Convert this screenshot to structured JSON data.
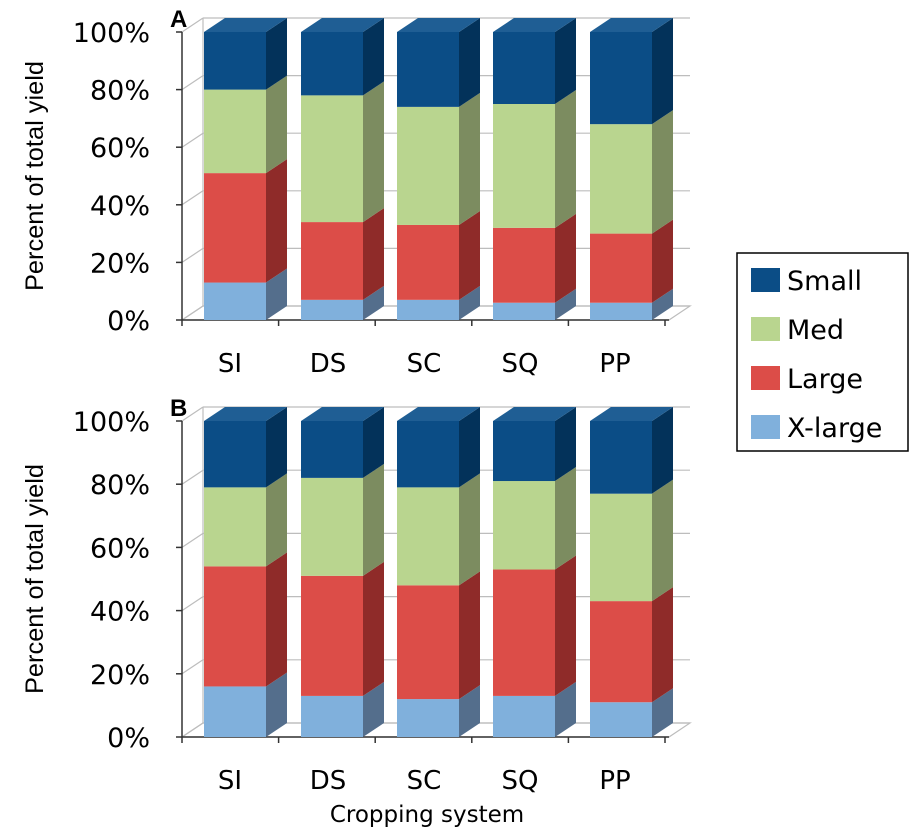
{
  "chart_data": [
    {
      "type": "bar",
      "stacked": true,
      "panel_label": "A",
      "ylabel": "Percent of total yield",
      "xlabel": "",
      "ylim": [
        0,
        100
      ],
      "y_ticks": [
        "0%",
        "20%",
        "40%",
        "60%",
        "80%",
        "100%"
      ],
      "categories": [
        "SI",
        "DS",
        "SC",
        "SQ",
        "PP"
      ],
      "series": [
        {
          "name": "X-large",
          "values": [
            13,
            7,
            7,
            6,
            6
          ]
        },
        {
          "name": "Large",
          "values": [
            38,
            27,
            26,
            26,
            24
          ]
        },
        {
          "name": "Med",
          "values": [
            29,
            44,
            41,
            43,
            38
          ]
        },
        {
          "name": "Small",
          "values": [
            20,
            22,
            26,
            25,
            32
          ]
        }
      ]
    },
    {
      "type": "bar",
      "stacked": true,
      "panel_label": "B",
      "ylabel": "Percent of total yield",
      "xlabel": "Cropping system",
      "ylim": [
        0,
        100
      ],
      "y_ticks": [
        "0%",
        "20%",
        "40%",
        "60%",
        "80%",
        "100%"
      ],
      "categories": [
        "SI",
        "DS",
        "SC",
        "SQ",
        "PP"
      ],
      "series": [
        {
          "name": "X-large",
          "values": [
            16,
            13,
            12,
            13,
            11
          ]
        },
        {
          "name": "Large",
          "values": [
            38,
            38,
            36,
            40,
            32
          ]
        },
        {
          "name": "Med",
          "values": [
            25,
            31,
            31,
            28,
            34
          ]
        },
        {
          "name": "Small",
          "values": [
            21,
            18,
            21,
            19,
            23
          ]
        }
      ]
    }
  ],
  "legend": {
    "placement": "right",
    "items": [
      {
        "name": "Small",
        "color": "#0b4d86"
      },
      {
        "name": "Med",
        "color": "#b9d58f"
      },
      {
        "name": "Large",
        "color": "#dc4d48"
      },
      {
        "name": "X-large",
        "color": "#80b0dc"
      }
    ]
  },
  "colors": {
    "Small": {
      "front": "#0b4d86",
      "side": "#03325a",
      "top": "#1f5e94"
    },
    "Med": {
      "front": "#b9d58f",
      "side": "#7c8c60",
      "top": "#c8e0a4"
    },
    "Large": {
      "front": "#dc4d48",
      "side": "#8f2b29",
      "top": "#e46864"
    },
    "X-large": {
      "front": "#80b0dc",
      "side": "#546e8c",
      "top": "#9cc2e6"
    }
  }
}
